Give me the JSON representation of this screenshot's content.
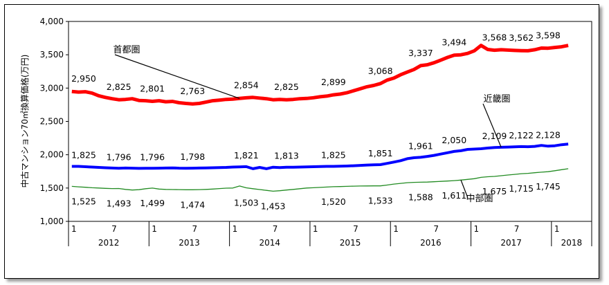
{
  "chart_data": {
    "type": "line",
    "ylabel": "中古マンション70㎡換算価格(万円)",
    "ylim": [
      1000,
      4000
    ],
    "ytick_step": 500,
    "ytick_labels": [
      "1,000",
      "1,500",
      "2,000",
      "2,500",
      "3,000",
      "3,500",
      "4,000"
    ],
    "grid": false,
    "x_month_ticks": [
      "1",
      "7",
      "1",
      "7",
      "1",
      "7",
      "1",
      "7",
      "1",
      "7",
      "1",
      "7",
      "1"
    ],
    "years": [
      "2012",
      "2013",
      "2014",
      "2015",
      "2016",
      "2017",
      "2018"
    ],
    "x_range_months": [
      "2012-01",
      "2018-07"
    ],
    "series": [
      {
        "name": "首都圏",
        "color": "#ff0000",
        "values": [
          2950,
          2940,
          2945,
          2925,
          2885,
          2860,
          2840,
          2825,
          2830,
          2840,
          2815,
          2810,
          2801,
          2810,
          2795,
          2800,
          2780,
          2770,
          2763,
          2770,
          2790,
          2810,
          2820,
          2830,
          2835,
          2845,
          2854,
          2860,
          2850,
          2840,
          2825,
          2830,
          2825,
          2830,
          2840,
          2845,
          2855,
          2870,
          2880,
          2899,
          2910,
          2930,
          2960,
          2990,
          3020,
          3040,
          3068,
          3120,
          3150,
          3200,
          3240,
          3280,
          3337,
          3350,
          3380,
          3420,
          3460,
          3494,
          3500,
          3520,
          3560,
          3640,
          3580,
          3568,
          3575,
          3570,
          3565,
          3562,
          3560,
          3575,
          3600,
          3598,
          3610,
          3620,
          3640
        ],
        "point_labels": [
          {
            "i": 0,
            "text": "2,950"
          },
          {
            "i": 7,
            "text": "2,825"
          },
          {
            "i": 12,
            "text": "2,801"
          },
          {
            "i": 18,
            "text": "2,763"
          },
          {
            "i": 26,
            "text": "2,854"
          },
          {
            "i": 32,
            "text": "2,825"
          },
          {
            "i": 39,
            "text": "2,899"
          },
          {
            "i": 46,
            "text": "3,068"
          },
          {
            "i": 52,
            "text": "3,337"
          },
          {
            "i": 57,
            "text": "3,494"
          },
          {
            "i": 63,
            "text": "3,568"
          },
          {
            "i": 67,
            "text": "3,562"
          },
          {
            "i": 71,
            "text": "3,598"
          }
        ]
      },
      {
        "name": "近畿圏",
        "color": "#0000ff",
        "values": [
          1825,
          1825,
          1820,
          1815,
          1810,
          1805,
          1800,
          1796,
          1800,
          1798,
          1795,
          1796,
          1796,
          1798,
          1800,
          1802,
          1798,
          1797,
          1798,
          1800,
          1802,
          1805,
          1808,
          1810,
          1815,
          1818,
          1821,
          1790,
          1810,
          1790,
          1813,
          1808,
          1813,
          1813,
          1815,
          1818,
          1820,
          1822,
          1825,
          1825,
          1828,
          1830,
          1835,
          1840,
          1845,
          1848,
          1851,
          1870,
          1890,
          1910,
          1940,
          1955,
          1961,
          1975,
          1990,
          2010,
          2030,
          2050,
          2060,
          2080,
          2085,
          2090,
          2100,
          2109,
          2112,
          2115,
          2118,
          2122,
          2120,
          2125,
          2140,
          2128,
          2135,
          2150,
          2160
        ],
        "point_labels": [
          {
            "i": 0,
            "text": "1,825"
          },
          {
            "i": 7,
            "text": "1,796"
          },
          {
            "i": 12,
            "text": "1,796"
          },
          {
            "i": 18,
            "text": "1,798"
          },
          {
            "i": 26,
            "text": "1,821"
          },
          {
            "i": 32,
            "text": "1,813"
          },
          {
            "i": 39,
            "text": "1,825"
          },
          {
            "i": 46,
            "text": "1,851"
          },
          {
            "i": 52,
            "text": "1,961"
          },
          {
            "i": 57,
            "text": "2,050"
          },
          {
            "i": 63,
            "text": "2,109"
          },
          {
            "i": 67,
            "text": "2,122"
          },
          {
            "i": 71,
            "text": "2,128"
          }
        ]
      },
      {
        "name": "中部圏",
        "color": "#228b22",
        "values": [
          1525,
          1518,
          1512,
          1505,
          1500,
          1495,
          1492,
          1493,
          1480,
          1470,
          1475,
          1490,
          1499,
          1485,
          1480,
          1478,
          1476,
          1474,
          1474,
          1476,
          1480,
          1485,
          1492,
          1498,
          1500,
          1530,
          1503,
          1490,
          1478,
          1465,
          1453,
          1460,
          1470,
          1480,
          1490,
          1500,
          1505,
          1510,
          1515,
          1520,
          1522,
          1525,
          1528,
          1530,
          1532,
          1533,
          1533,
          1545,
          1560,
          1570,
          1580,
          1585,
          1588,
          1590,
          1595,
          1600,
          1605,
          1611,
          1620,
          1630,
          1640,
          1660,
          1670,
          1675,
          1685,
          1695,
          1705,
          1715,
          1720,
          1730,
          1738,
          1745,
          1760,
          1775,
          1790
        ],
        "point_labels": [
          {
            "i": 0,
            "text": "1,525"
          },
          {
            "i": 7,
            "text": "1,493"
          },
          {
            "i": 12,
            "text": "1,499"
          },
          {
            "i": 18,
            "text": "1,474"
          },
          {
            "i": 26,
            "text": "1,503"
          },
          {
            "i": 30,
            "text": "1,453"
          },
          {
            "i": 39,
            "text": "1,520"
          },
          {
            "i": 46,
            "text": "1,533"
          },
          {
            "i": 52,
            "text": "1,588"
          },
          {
            "i": 57,
            "text": "1,611"
          },
          {
            "i": 63,
            "text": "1,675"
          },
          {
            "i": 67,
            "text": "1,715"
          },
          {
            "i": 71,
            "text": "1,745"
          }
        ]
      }
    ]
  }
}
